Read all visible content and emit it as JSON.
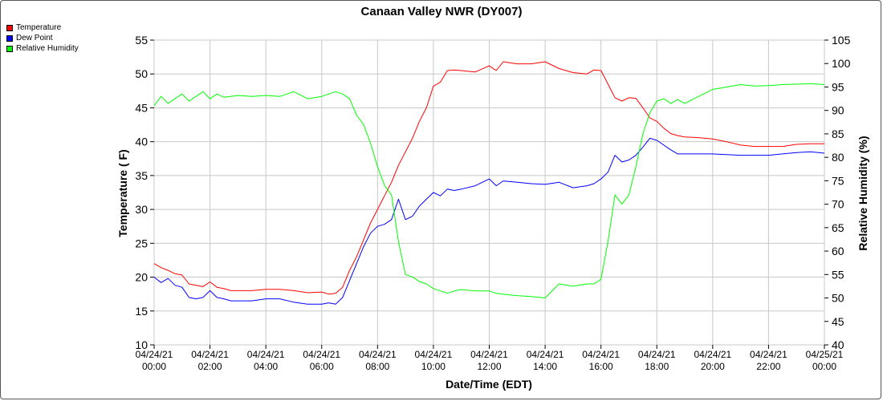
{
  "chart_data": {
    "type": "line",
    "title": "Canaan Valley NWR (DY007)",
    "xlabel": "Date/Time (EDT)",
    "ylabel_left": "Temperature ( F)",
    "ylabel_right": "Relative Humidity (%)",
    "ylim_left": [
      10,
      55
    ],
    "yticks_left": [
      10,
      15,
      20,
      25,
      30,
      35,
      40,
      45,
      50,
      55
    ],
    "ylim_right": [
      40,
      105
    ],
    "yticks_right": [
      40,
      45,
      50,
      55,
      60,
      65,
      70,
      75,
      80,
      85,
      90,
      95,
      100,
      105
    ],
    "xlim_hours": [
      0,
      24
    ],
    "xticks": [
      {
        "h": 0,
        "l1": "04/24/21",
        "l2": "00:00"
      },
      {
        "h": 2,
        "l1": "04/24/21",
        "l2": "02:00"
      },
      {
        "h": 4,
        "l1": "04/24/21",
        "l2": "04:00"
      },
      {
        "h": 6,
        "l1": "04/24/21",
        "l2": "06:00"
      },
      {
        "h": 8,
        "l1": "04/24/21",
        "l2": "08:00"
      },
      {
        "h": 10,
        "l1": "04/24/21",
        "l2": "10:00"
      },
      {
        "h": 12,
        "l1": "04/24/21",
        "l2": "12:00"
      },
      {
        "h": 14,
        "l1": "04/24/21",
        "l2": "14:00"
      },
      {
        "h": 16,
        "l1": "04/24/21",
        "l2": "16:00"
      },
      {
        "h": 18,
        "l1": "04/24/21",
        "l2": "18:00"
      },
      {
        "h": 20,
        "l1": "04/24/21",
        "l2": "20:00"
      },
      {
        "h": 22,
        "l1": "04/24/21",
        "l2": "22:00"
      },
      {
        "h": 24,
        "l1": "04/25/21",
        "l2": "00:00"
      }
    ],
    "grid": true,
    "legend_position": "top-left",
    "series": [
      {
        "name": "Temperature",
        "color": "#ff0000",
        "axis": "left",
        "x": [
          0,
          0.25,
          0.5,
          0.75,
          1,
          1.25,
          1.5,
          1.75,
          2,
          2.25,
          2.5,
          2.75,
          3,
          3.5,
          4,
          4.5,
          5,
          5.5,
          6,
          6.25,
          6.5,
          6.75,
          7,
          7.25,
          7.5,
          7.75,
          8,
          8.25,
          8.5,
          8.75,
          9,
          9.25,
          9.5,
          9.75,
          10,
          10.25,
          10.5,
          10.75,
          11,
          11.5,
          12,
          12.25,
          12.5,
          13,
          13.5,
          14,
          14.5,
          15,
          15.5,
          15.75,
          16,
          16.25,
          16.5,
          16.75,
          17,
          17.25,
          17.5,
          17.75,
          18,
          18.25,
          18.5,
          18.75,
          19,
          19.5,
          20,
          20.5,
          21,
          21.5,
          22,
          22.5,
          23,
          23.5,
          24
        ],
        "values": [
          22,
          21.4,
          21,
          20.5,
          20.3,
          19,
          18.8,
          18.6,
          19.3,
          18.5,
          18.3,
          18,
          18,
          18,
          18.2,
          18.2,
          18,
          17.7,
          17.8,
          17.5,
          17.6,
          18.5,
          21,
          23,
          25.5,
          28,
          30,
          32,
          34,
          36.5,
          38.5,
          40.5,
          43,
          45,
          48.2,
          48.8,
          50.5,
          50.6,
          50.5,
          50.3,
          51.2,
          50.5,
          51.8,
          51.5,
          51.5,
          51.8,
          50.8,
          50.2,
          50,
          50.6,
          50.5,
          48.5,
          46.5,
          46,
          46.5,
          46.4,
          45,
          43.5,
          43,
          42,
          41.2,
          40.9,
          40.7,
          40.6,
          40.4,
          40,
          39.5,
          39.3,
          39.3,
          39.3,
          39.6,
          39.7,
          39.7
        ]
      },
      {
        "name": "Dew Point",
        "color": "#0000ff",
        "axis": "left",
        "x": [
          0,
          0.25,
          0.5,
          0.75,
          1,
          1.25,
          1.5,
          1.75,
          2,
          2.25,
          2.5,
          2.75,
          3,
          3.5,
          4,
          4.5,
          5,
          5.5,
          6,
          6.25,
          6.5,
          6.75,
          7,
          7.25,
          7.5,
          7.75,
          8,
          8.25,
          8.5,
          8.75,
          9,
          9.25,
          9.5,
          9.75,
          10,
          10.25,
          10.5,
          10.75,
          11,
          11.5,
          12,
          12.25,
          12.5,
          13,
          13.5,
          14,
          14.5,
          15,
          15.5,
          15.75,
          16,
          16.25,
          16.5,
          16.75,
          17,
          17.25,
          17.5,
          17.75,
          18,
          18.25,
          18.5,
          18.75,
          19,
          19.5,
          20,
          20.5,
          21,
          21.5,
          22,
          22.5,
          23,
          23.5,
          24
        ],
        "values": [
          20,
          19.2,
          19.8,
          18.8,
          18.5,
          17,
          16.8,
          17,
          18,
          17,
          16.8,
          16.5,
          16.5,
          16.5,
          16.8,
          16.8,
          16.3,
          16,
          16,
          16.2,
          16,
          17,
          19.5,
          22,
          24.5,
          26.5,
          27.5,
          27.8,
          28.5,
          31.5,
          28.5,
          29,
          30.5,
          31.5,
          32.5,
          32,
          33,
          32.8,
          33,
          33.5,
          34.5,
          33.5,
          34.2,
          34,
          33.8,
          33.7,
          34,
          33.2,
          33.5,
          33.8,
          34.5,
          35.5,
          38,
          37,
          37.3,
          38,
          39.2,
          40.5,
          40.2,
          39.5,
          38.8,
          38.2,
          38.2,
          38.2,
          38.2,
          38.1,
          38,
          38,
          38,
          38.2,
          38.4,
          38.5,
          38.3
        ]
      },
      {
        "name": "Relative Humidity",
        "color": "#00ff00",
        "axis": "right",
        "x": [
          0,
          0.25,
          0.5,
          0.75,
          1,
          1.25,
          1.5,
          1.75,
          2,
          2.25,
          2.5,
          2.75,
          3,
          3.5,
          4,
          4.5,
          5,
          5.5,
          6,
          6.25,
          6.5,
          6.75,
          7,
          7.25,
          7.5,
          7.75,
          8,
          8.25,
          8.5,
          8.75,
          9,
          9.25,
          9.5,
          9.75,
          10,
          10.25,
          10.5,
          10.75,
          11,
          11.5,
          12,
          12.25,
          12.5,
          13,
          13.5,
          14,
          14.5,
          15,
          15.5,
          15.75,
          16,
          16.25,
          16.5,
          16.75,
          17,
          17.25,
          17.5,
          17.75,
          18,
          18.25,
          18.5,
          18.75,
          19,
          19.5,
          20,
          20.5,
          21,
          21.5,
          22,
          22.5,
          23,
          23.5,
          24
        ],
        "values": [
          91,
          93,
          91.5,
          92.5,
          93.5,
          92,
          93,
          94,
          92.5,
          93.5,
          92.8,
          93,
          93.2,
          93,
          93.2,
          93,
          94,
          92.5,
          93,
          93.5,
          94,
          93.5,
          92.5,
          89,
          87,
          83,
          78,
          74,
          72,
          62,
          55,
          54.5,
          53.5,
          53,
          52,
          51.5,
          51,
          51.5,
          51.8,
          51.5,
          51.5,
          51,
          50.8,
          50.5,
          50.3,
          50,
          53,
          52.5,
          53,
          53,
          54,
          62,
          72,
          70,
          72,
          78,
          85,
          89.5,
          92,
          92.5,
          91.5,
          92.3,
          91.5,
          93,
          94.5,
          95,
          95.5,
          95.2,
          95.3,
          95.5,
          95.6,
          95.7,
          95.5
        ]
      }
    ]
  }
}
